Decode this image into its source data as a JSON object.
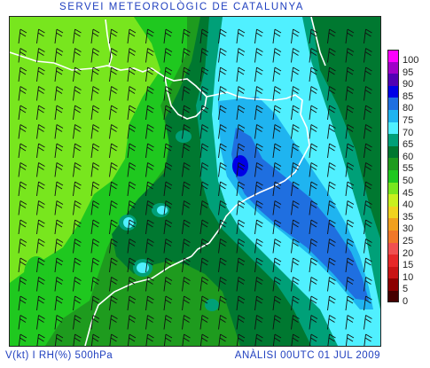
{
  "title": "SERVEI METEOROLÒGIC DE CATALUNYA",
  "footer": {
    "product": "V(kt) I RH(%) 500hPa",
    "analysis": "ANÀLISI 00UTC 01 JUL 2009"
  },
  "legend": {
    "unit_values": [
      "100",
      "95",
      "90",
      "85",
      "80",
      "75",
      "70",
      "65",
      "60",
      "55",
      "50",
      "45",
      "40",
      "35",
      "30",
      "25",
      "20",
      "15",
      "10",
      "5",
      "0"
    ],
    "colors": [
      "#ff00ff",
      "#a000c8",
      "#5000b4",
      "#0000e6",
      "#1f6fe0",
      "#1fb4f0",
      "#50f0ff",
      "#00a078",
      "#007830",
      "#1e9b1e",
      "#1fc81f",
      "#78e61e",
      "#c8f01e",
      "#f0d21e",
      "#f0a01e",
      "#f07828",
      "#f05050",
      "#e62828",
      "#c81414",
      "#8c0000",
      "#460000"
    ]
  },
  "palette": {
    "rh_95_100": "#ff00ff",
    "rh_85_90": "#0000e6",
    "rh_80_85": "#1f6fe0",
    "rh_75_80": "#1fb4f0",
    "rh_70_75": "#50f0ff",
    "rh_65_70": "#00a078",
    "rh_60_65": "#007830",
    "rh_55_60": "#1e9b1e",
    "rh_50_55": "#1fc81f",
    "rh_45_50": "#78e61e",
    "coastline": "#ffffff",
    "text": "#1f3fbf"
  }
}
